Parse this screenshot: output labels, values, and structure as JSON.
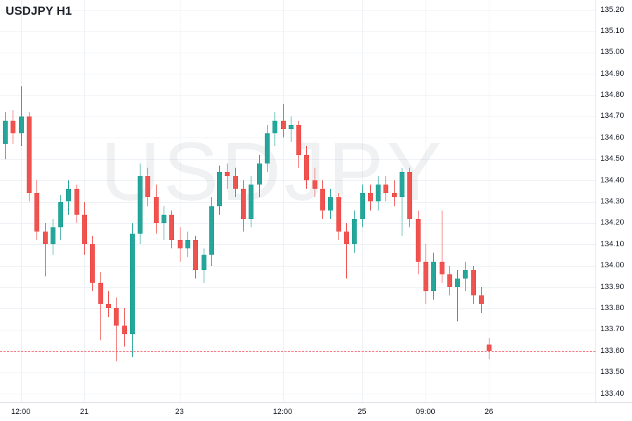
{
  "header": {
    "title": "USDJPY H1"
  },
  "watermark": "USDJPY",
  "colors": {
    "up": "#26a69a",
    "down": "#ef5350",
    "grid": "#eef1f5",
    "axis_text": "#131722",
    "current_price_line": "#f23645",
    "background": "#ffffff"
  },
  "price_axis": {
    "min": 133.4,
    "max": 135.2,
    "ticks": [
      "135.20",
      "135.10",
      "135.00",
      "134.90",
      "134.80",
      "134.70",
      "134.60",
      "134.50",
      "134.40",
      "134.30",
      "134.20",
      "134.10",
      "134.00",
      "133.90",
      "133.80",
      "133.70",
      "133.60",
      "133.50",
      "133.40"
    ]
  },
  "time_axis": {
    "ticks": [
      {
        "label": "12:00",
        "index": 2
      },
      {
        "label": "21",
        "index": 10
      },
      {
        "label": "23",
        "index": 22
      },
      {
        "label": "12:00",
        "index": 35
      },
      {
        "label": "25",
        "index": 45
      },
      {
        "label": "09:00",
        "index": 53
      },
      {
        "label": "26",
        "index": 61
      }
    ]
  },
  "chart_data": {
    "type": "candlestick",
    "symbol": "USDJPY",
    "timeframe": "H1",
    "title": "USDJPY H1",
    "current_price": 133.6,
    "price_range": [
      133.4,
      135.2
    ],
    "grid": true,
    "candles_format": [
      "open",
      "high",
      "low",
      "close"
    ],
    "candles": [
      [
        134.57,
        134.72,
        134.5,
        134.68
      ],
      [
        134.68,
        134.73,
        134.57,
        134.62
      ],
      [
        134.62,
        134.84,
        134.56,
        134.7
      ],
      [
        134.7,
        134.72,
        134.3,
        134.34
      ],
      [
        134.34,
        134.4,
        134.12,
        134.16
      ],
      [
        134.16,
        134.2,
        133.95,
        134.1
      ],
      [
        134.1,
        134.22,
        134.05,
        134.18
      ],
      [
        134.18,
        134.33,
        134.12,
        134.3
      ],
      [
        134.3,
        134.4,
        134.24,
        134.36
      ],
      [
        134.36,
        134.38,
        134.2,
        134.24
      ],
      [
        134.24,
        134.3,
        134.05,
        134.1
      ],
      [
        134.1,
        134.14,
        133.88,
        133.92
      ],
      [
        133.92,
        133.97,
        133.65,
        133.82
      ],
      [
        133.82,
        133.88,
        133.76,
        133.8
      ],
      [
        133.8,
        133.85,
        133.55,
        133.72
      ],
      [
        133.72,
        133.8,
        133.62,
        133.68
      ],
      [
        133.68,
        134.2,
        133.57,
        134.15
      ],
      [
        134.15,
        134.48,
        134.1,
        134.42
      ],
      [
        134.42,
        134.46,
        134.28,
        134.32
      ],
      [
        134.32,
        134.38,
        134.15,
        134.2
      ],
      [
        134.2,
        134.28,
        134.12,
        134.24
      ],
      [
        134.24,
        134.26,
        134.08,
        134.12
      ],
      [
        134.12,
        134.18,
        134.02,
        134.08
      ],
      [
        134.08,
        134.16,
        134.04,
        134.12
      ],
      [
        134.12,
        134.14,
        133.94,
        133.98
      ],
      [
        133.98,
        134.08,
        133.92,
        134.05
      ],
      [
        134.05,
        134.32,
        134.0,
        134.28
      ],
      [
        134.28,
        134.47,
        134.24,
        134.44
      ],
      [
        134.44,
        134.48,
        134.36,
        134.42
      ],
      [
        134.42,
        134.46,
        134.32,
        134.36
      ],
      [
        134.36,
        134.4,
        134.16,
        134.22
      ],
      [
        134.22,
        134.42,
        134.18,
        134.38
      ],
      [
        134.38,
        134.52,
        134.32,
        134.48
      ],
      [
        134.48,
        134.66,
        134.44,
        134.62
      ],
      [
        134.62,
        134.72,
        134.56,
        134.68
      ],
      [
        134.68,
        134.76,
        134.6,
        134.64
      ],
      [
        134.64,
        134.7,
        134.58,
        134.66
      ],
      [
        134.66,
        134.68,
        134.46,
        134.52
      ],
      [
        134.52,
        134.56,
        134.36,
        134.4
      ],
      [
        134.4,
        134.46,
        134.32,
        134.36
      ],
      [
        134.36,
        134.4,
        134.22,
        134.26
      ],
      [
        134.26,
        134.36,
        134.22,
        134.32
      ],
      [
        134.32,
        134.34,
        134.12,
        134.16
      ],
      [
        134.16,
        134.2,
        133.94,
        134.1
      ],
      [
        134.1,
        134.26,
        134.06,
        134.22
      ],
      [
        134.22,
        134.38,
        134.18,
        134.34
      ],
      [
        134.34,
        134.38,
        134.26,
        134.3
      ],
      [
        134.3,
        134.42,
        134.26,
        134.38
      ],
      [
        134.38,
        134.42,
        134.3,
        134.34
      ],
      [
        134.34,
        134.4,
        134.28,
        134.32
      ],
      [
        134.32,
        134.46,
        134.14,
        134.44
      ],
      [
        134.44,
        134.46,
        134.18,
        134.22
      ],
      [
        134.22,
        134.26,
        133.96,
        134.02
      ],
      [
        134.02,
        134.1,
        133.82,
        133.88
      ],
      [
        133.88,
        134.06,
        133.84,
        134.02
      ],
      [
        134.02,
        134.26,
        133.92,
        133.96
      ],
      [
        133.96,
        134.0,
        133.86,
        133.9
      ],
      [
        133.9,
        133.98,
        133.74,
        133.94
      ],
      [
        133.94,
        134.02,
        133.88,
        133.98
      ],
      [
        133.98,
        134.0,
        133.82,
        133.86
      ],
      [
        133.86,
        133.9,
        133.78,
        133.82
      ],
      [
        133.63,
        133.66,
        133.56,
        133.6
      ]
    ]
  }
}
